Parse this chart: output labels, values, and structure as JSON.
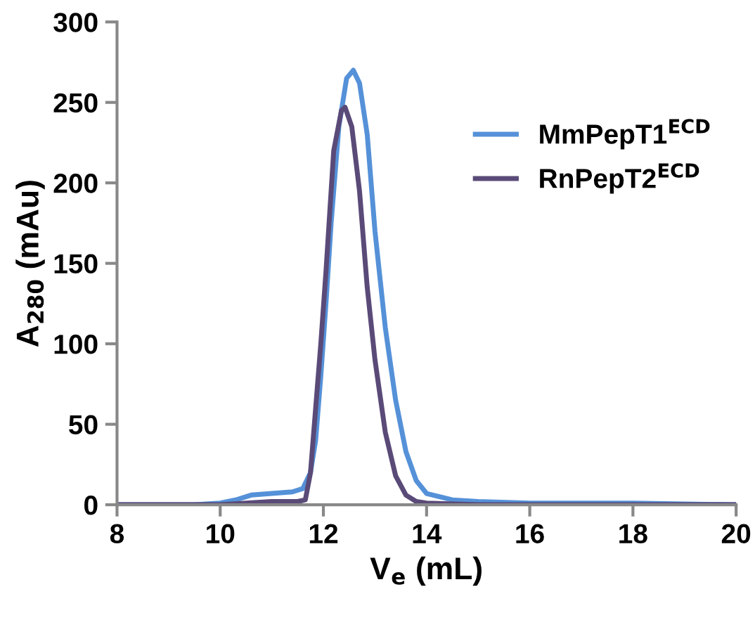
{
  "chart_data": {
    "type": "line",
    "xlabel": "V$_{e}$ (mL)",
    "ylabel": "A$_{280}$ (mAu)",
    "xlim": [
      8,
      20
    ],
    "xticks": [
      8,
      10,
      12,
      14,
      16,
      18,
      20
    ],
    "ylim": [
      0,
      300
    ],
    "yticks": [
      0,
      50,
      100,
      150,
      200,
      250,
      300
    ],
    "grid": false,
    "legend": "top right",
    "marker": "none",
    "line_style": "solid",
    "series": [
      {
        "name": "MmPepT1$^{ECD}$",
        "color": "#5591d8",
        "x": [
          8,
          9.5,
          10,
          10.3,
          10.6,
          11,
          11.4,
          11.6,
          11.75,
          11.85,
          11.95,
          12.05,
          12.15,
          12.3,
          12.45,
          12.58,
          12.7,
          12.85,
          13.0,
          13.1,
          13.2,
          13.4,
          13.6,
          13.8,
          14.0,
          14.5,
          15,
          16,
          18,
          20
        ],
        "values": [
          0,
          0,
          1,
          3,
          6,
          7,
          8,
          10,
          20,
          40,
          80,
          125,
          175,
          235,
          265,
          270,
          262,
          230,
          170,
          140,
          110,
          65,
          33,
          15,
          7,
          3,
          2,
          1,
          1,
          0
        ]
      },
      {
        "name": "RnPepT2$^{ECD}$",
        "color": "#5a4a78",
        "x": [
          8,
          10,
          10.5,
          11,
          11.5,
          11.65,
          11.75,
          11.85,
          11.95,
          12.05,
          12.2,
          12.35,
          12.42,
          12.55,
          12.7,
          12.85,
          13.0,
          13.2,
          13.4,
          13.6,
          13.8,
          14,
          15,
          20
        ],
        "values": [
          0,
          0,
          1,
          2,
          2,
          3,
          20,
          60,
          100,
          145,
          220,
          245,
          247,
          235,
          195,
          135,
          90,
          45,
          18,
          6,
          2,
          1,
          0,
          0
        ]
      }
    ]
  }
}
